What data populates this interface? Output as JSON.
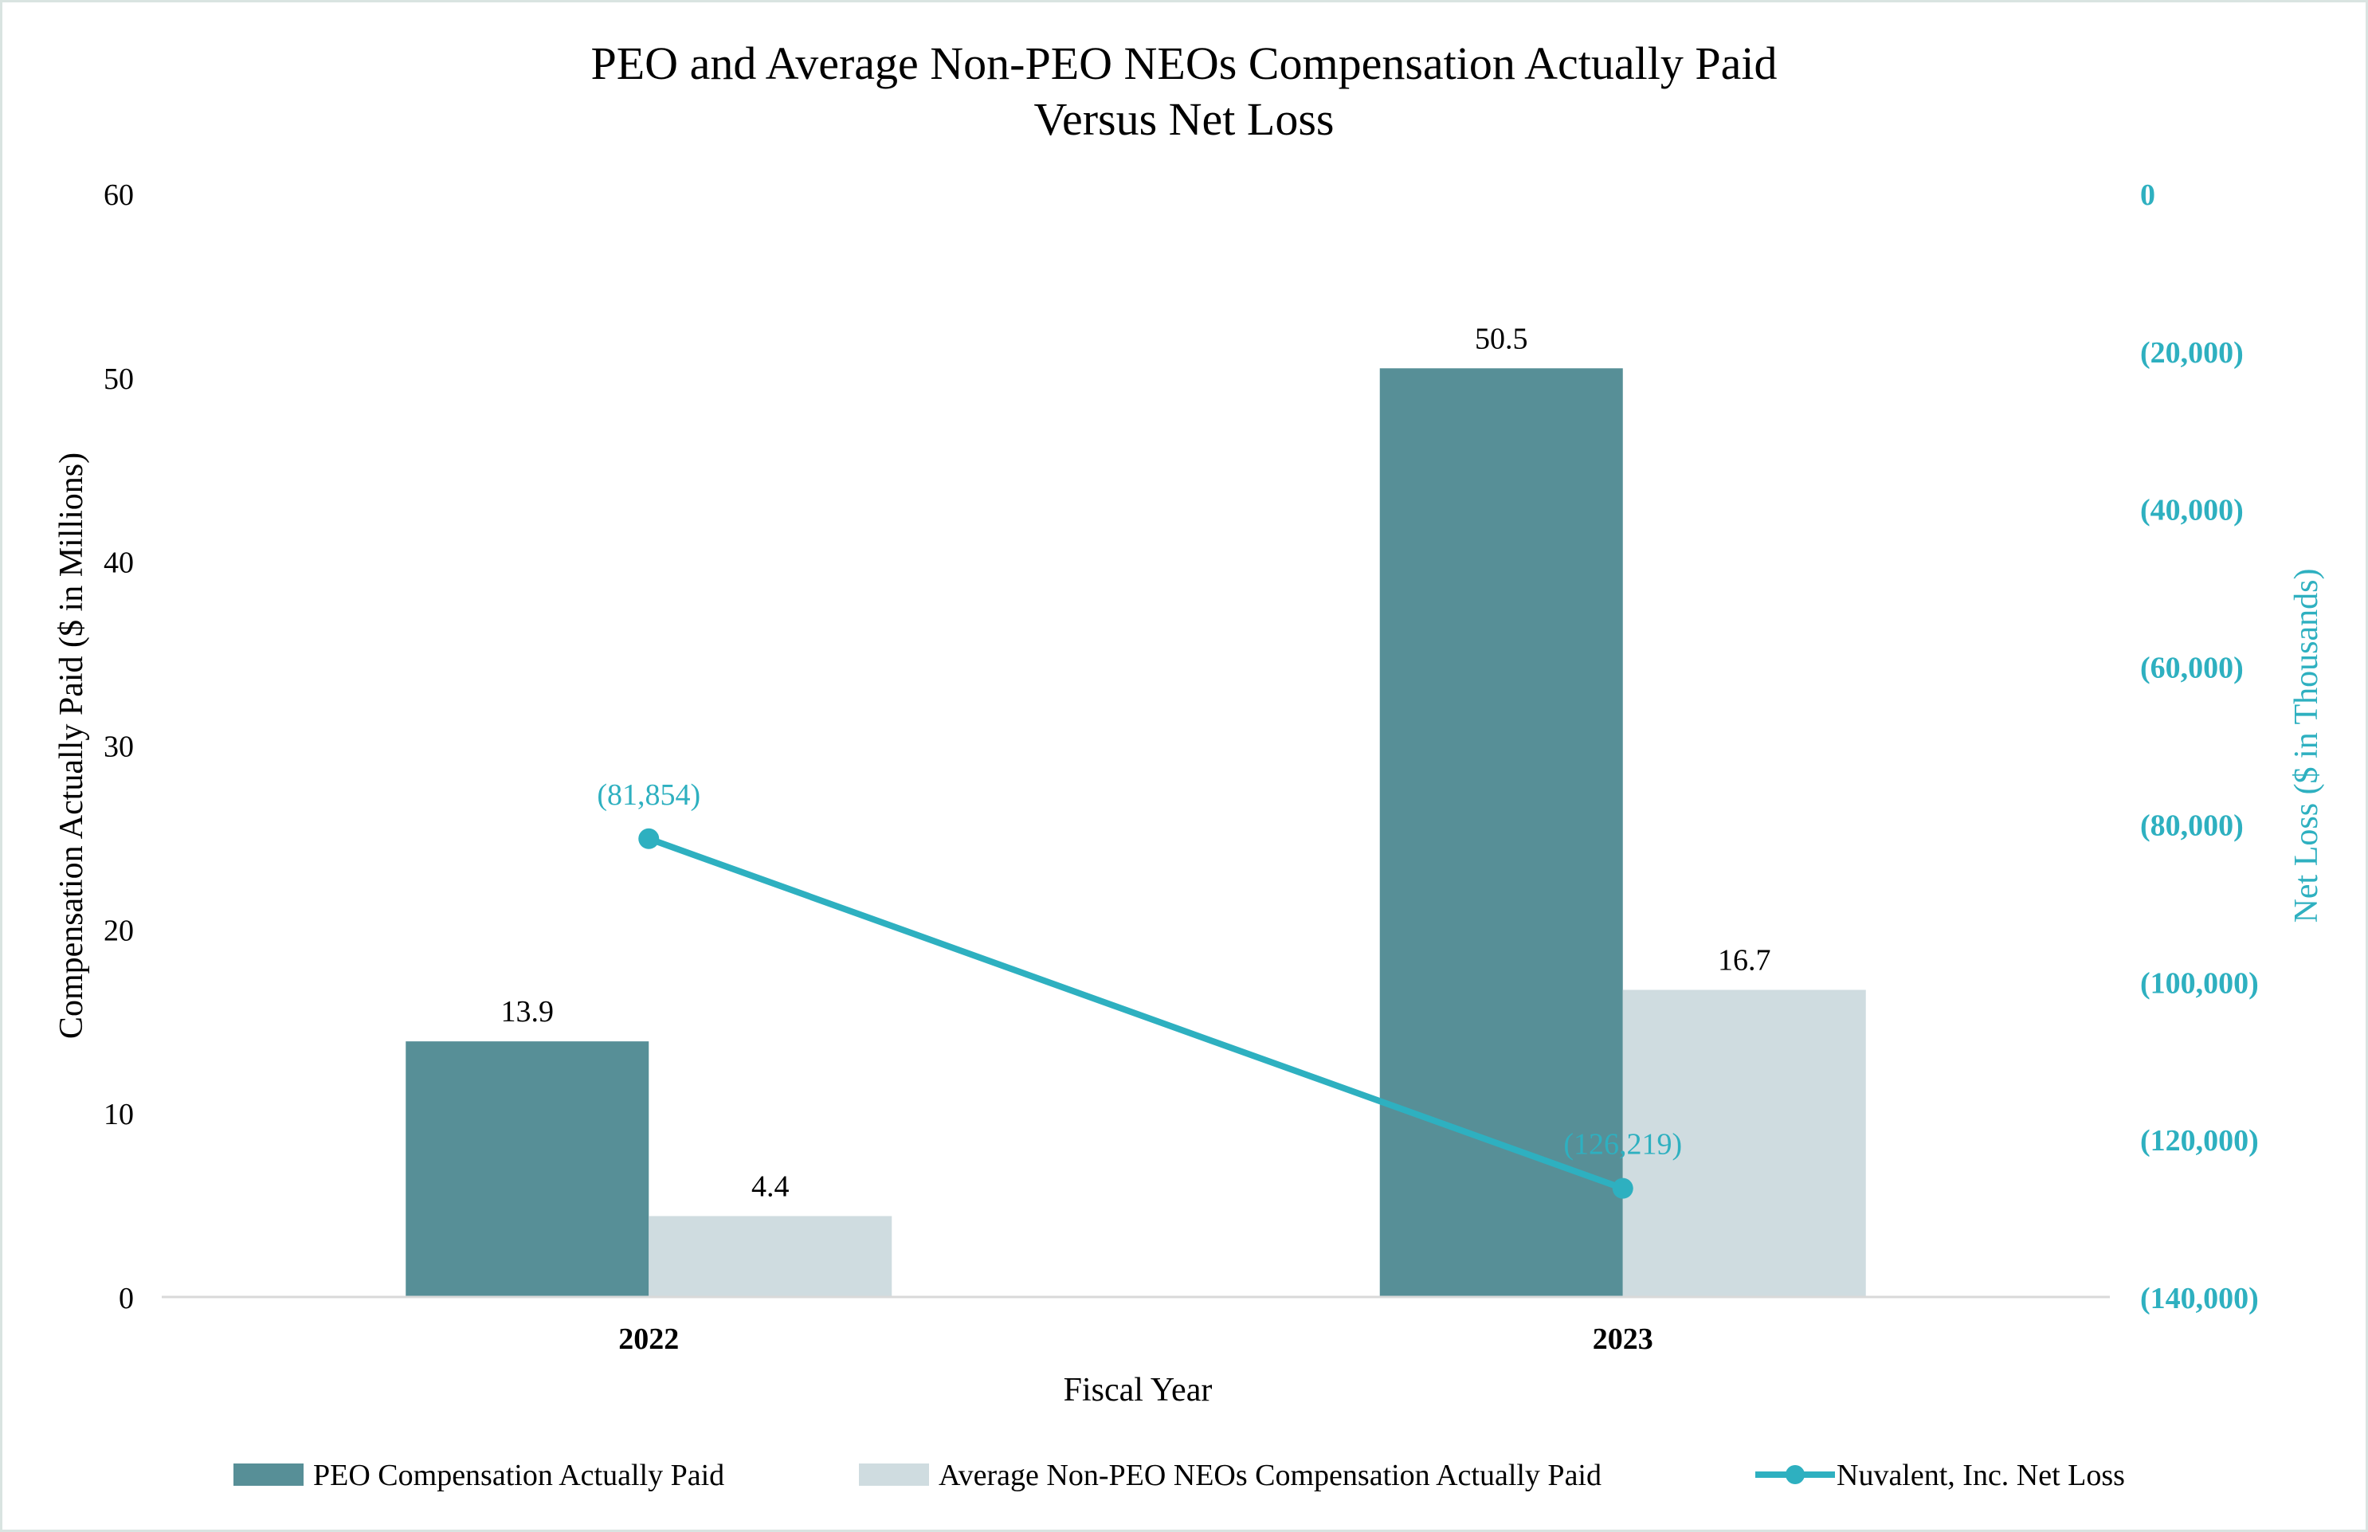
{
  "chart_data": {
    "type": "bar",
    "title_lines": [
      "PEO and Average Non-PEO NEOs Compensation Actually Paid",
      "Versus Net Loss"
    ],
    "categories": [
      "2022",
      "2023"
    ],
    "xlabel": "Fiscal Year",
    "ylabel": "Compensation Actually Paid ($ in Millions)",
    "ylim": [
      0,
      60
    ],
    "yticks": [
      0,
      10,
      20,
      30,
      40,
      50,
      60
    ],
    "y2label": "Net Loss ($ in Thousands)",
    "y2lim": [
      -140000,
      0
    ],
    "y2ticks": [
      {
        "value": 0,
        "label": "0"
      },
      {
        "value": -20000,
        "label": "(20,000)"
      },
      {
        "value": -40000,
        "label": "(40,000)"
      },
      {
        "value": -60000,
        "label": "(60,000)"
      },
      {
        "value": -80000,
        "label": "(80,000)"
      },
      {
        "value": -100000,
        "label": "(100,000)"
      },
      {
        "value": -120000,
        "label": "(120,000)"
      },
      {
        "value": -140000,
        "label": "(140,000)"
      }
    ],
    "grid": false,
    "legend_position": "bottom",
    "series": [
      {
        "name": "PEO Compensation Actually Paid",
        "kind": "bar",
        "axis": "left",
        "color": "#578f97",
        "values": [
          13.9,
          50.5
        ],
        "labels": [
          "13.9",
          "50.5"
        ]
      },
      {
        "name": "Average Non-PEO NEOs Compensation Actually Paid",
        "kind": "bar",
        "axis": "left",
        "color": "#cfdce0",
        "values": [
          4.4,
          16.7
        ],
        "labels": [
          "4.4",
          "16.7"
        ]
      },
      {
        "name": "Nuvalent, Inc. Net Loss",
        "kind": "line",
        "axis": "right",
        "color": "#2eb0c0",
        "values": [
          -81854,
          -126219
        ],
        "labels": [
          "(81,854)",
          "(126,219)"
        ]
      }
    ],
    "colors": {
      "axis_text": "#000000",
      "right_axis_text": "#2eb0c0",
      "axis_line": "#d9d9d9"
    }
  }
}
